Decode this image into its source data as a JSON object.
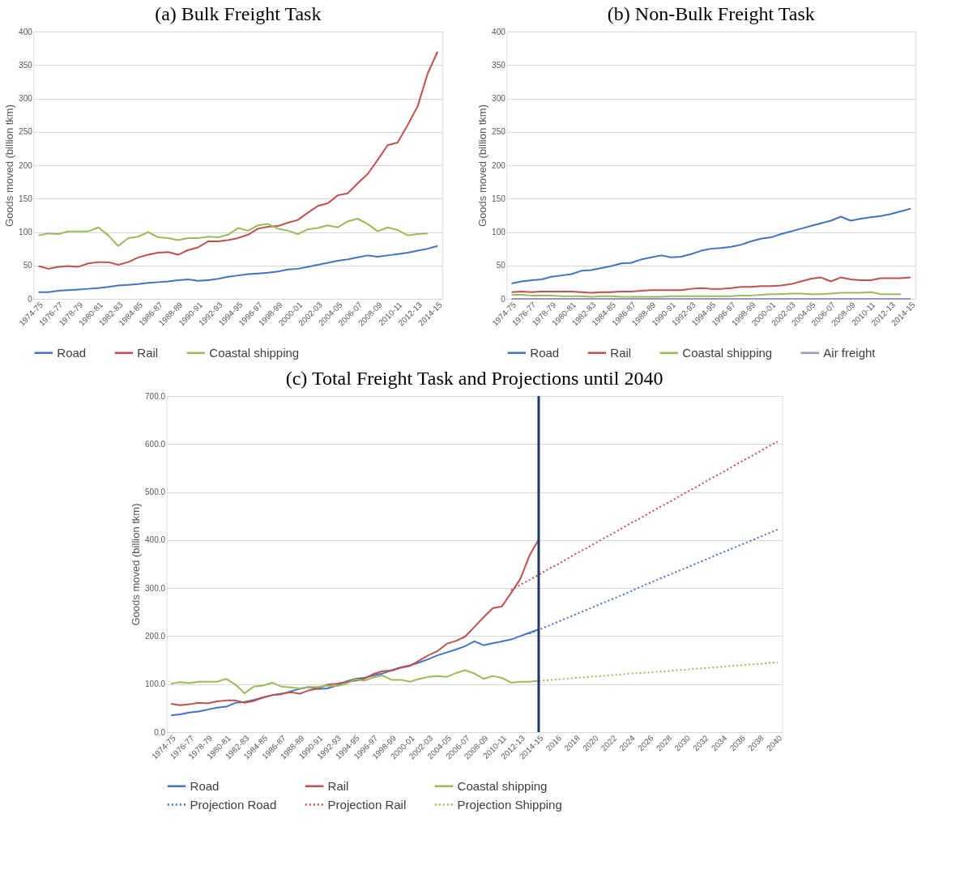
{
  "chart_data": [
    {
      "type": "line",
      "title": "(a) Bulk Freight Task",
      "ylabel": "Goods moved (billion tkm)",
      "categories": [
        "1974-75",
        null,
        "1976-77",
        null,
        "1978-79",
        null,
        "1980-81",
        null,
        "1982-83",
        null,
        "1984-85",
        null,
        "1986-87",
        null,
        "1988-89",
        null,
        "1990-91",
        null,
        "1992-93",
        null,
        "1994-95",
        null,
        "1996-97",
        null,
        "1998-99",
        null,
        "2000-01",
        null,
        "2002-03",
        null,
        "2004-05",
        null,
        "2006-07",
        null,
        "2008-09",
        null,
        "2010-11",
        null,
        "2012-13",
        null,
        "2014-15"
      ],
      "series": [
        {
          "name": "Road",
          "color": "#4472c4",
          "line_style": "solid",
          "values": [
            10,
            10,
            12,
            13,
            14,
            15,
            16,
            18,
            20,
            21,
            22,
            24,
            25,
            26,
            28,
            29,
            27,
            28,
            30,
            33,
            35,
            37,
            38,
            39,
            41,
            44,
            45,
            48,
            51,
            54,
            57,
            59,
            62,
            65,
            63,
            65,
            67,
            69,
            72,
            75,
            79
          ]
        },
        {
          "name": "Rail",
          "color": "#c0504d",
          "line_style": "solid",
          "values": [
            49,
            45,
            48,
            49,
            48,
            53,
            55,
            55,
            51,
            55,
            62,
            66,
            69,
            70,
            66,
            73,
            77,
            86,
            86,
            88,
            91,
            96,
            105,
            108,
            109,
            114,
            118,
            129,
            139,
            143,
            155,
            158,
            173,
            187,
            208,
            230,
            234,
            260,
            288,
            337,
            370
          ]
        },
        {
          "name": "Coastal shipping",
          "color": "#9bbb59",
          "line_style": "solid",
          "values": [
            95,
            98,
            97,
            101,
            101,
            101,
            107,
            95,
            79,
            91,
            93,
            100,
            92,
            91,
            88,
            91,
            91,
            93,
            92,
            96,
            106,
            102,
            110,
            112,
            105,
            102,
            97,
            104,
            106,
            110,
            107,
            116,
            120,
            112,
            101,
            107,
            103,
            95,
            97,
            98,
            null
          ]
        }
      ],
      "ylim": [
        0,
        400
      ],
      "yticks": [
        0,
        50,
        100,
        150,
        200,
        250,
        300,
        350,
        400
      ],
      "grid": "y",
      "legend": "bottom"
    },
    {
      "type": "line",
      "title": "(b) Non-Bulk Freight Task",
      "ylabel": "Goods moved (billion tkm)",
      "categories": [
        "1974-75",
        null,
        "1976-77",
        null,
        "1978-79",
        null,
        "1980-81",
        null,
        "1982-83",
        null,
        "1984-85",
        null,
        "1986-87",
        null,
        "1988-89",
        null,
        "1990-91",
        null,
        "1992-93",
        null,
        "1994-95",
        null,
        "1996-97",
        null,
        "1998-99",
        null,
        "2000-01",
        null,
        "2002-03",
        null,
        "2004-05",
        null,
        "2006-07",
        null,
        "2008-09",
        null,
        "2010-11",
        null,
        "2012-13",
        null,
        "2014-15"
      ],
      "series": [
        {
          "name": "Road",
          "color": "#4472c4",
          "line_style": "solid",
          "values": [
            23,
            26,
            28,
            29,
            33,
            35,
            37,
            42,
            43,
            46,
            49,
            53,
            54,
            59,
            62,
            65,
            62,
            63,
            67,
            72,
            75,
            76,
            78,
            81,
            86,
            90,
            92,
            97,
            101,
            105,
            109,
            113,
            117,
            123,
            117,
            120,
            122,
            124,
            127,
            131,
            135
          ]
        },
        {
          "name": "Rail",
          "color": "#c0504d",
          "line_style": "solid",
          "values": [
            10,
            11,
            10,
            11,
            11,
            11,
            11,
            10,
            9,
            10,
            10,
            11,
            11,
            12,
            13,
            13,
            13,
            13,
            15,
            16,
            15,
            15,
            16,
            18,
            18,
            19,
            19,
            20,
            22,
            26,
            30,
            32,
            26,
            32,
            29,
            28,
            28,
            31,
            31,
            31,
            32
          ]
        },
        {
          "name": "Coastal shipping",
          "color": "#9bbb59",
          "line_style": "solid",
          "values": [
            6,
            6,
            5,
            5,
            5,
            4,
            4,
            4,
            3,
            4,
            4,
            3,
            3,
            3,
            3,
            3,
            4,
            4,
            4,
            4,
            4,
            4,
            4,
            5,
            5,
            6,
            7,
            7,
            8,
            8,
            7,
            7,
            8,
            9,
            9,
            9,
            10,
            7,
            7,
            7,
            null
          ]
        },
        {
          "name": "Air freight",
          "color": "#a290c8",
          "line_style": "solid",
          "values": [
            0,
            0,
            0,
            0,
            0,
            0,
            0,
            0,
            0,
            0,
            0,
            0,
            0,
            0,
            0,
            0,
            0,
            0,
            0,
            0,
            0,
            0,
            0,
            0,
            0,
            0,
            0,
            0,
            0,
            0,
            0,
            0,
            0,
            0,
            0,
            0,
            0,
            0,
            0,
            0,
            0
          ]
        }
      ],
      "ylim": [
        0,
        400
      ],
      "yticks": [
        0,
        50,
        100,
        150,
        200,
        250,
        300,
        350,
        400
      ],
      "grid": "y",
      "legend": "bottom"
    },
    {
      "type": "line",
      "title": "(c) Total Freight Task and Projections until 2040",
      "ylabel": "Goods moved (billion tkm)",
      "categories": [
        "1974-75",
        null,
        "1976-77",
        null,
        "1978-79",
        null,
        "1980-81",
        null,
        "1982-83",
        null,
        "1984-85",
        null,
        "1986-87",
        null,
        "1988-89",
        null,
        "1990-91",
        null,
        "1992-93",
        null,
        "1994-95",
        null,
        "1996-97",
        null,
        "1998-99",
        null,
        "2000-01",
        null,
        "2002-03",
        null,
        "2004-05",
        null,
        "2006-07",
        null,
        "2008-09",
        null,
        "2010-11",
        null,
        "2012-13",
        null,
        "2014-15",
        null,
        "2016",
        null,
        "2018",
        null,
        "2020",
        null,
        "2022",
        null,
        "2024",
        null,
        "2026",
        null,
        "2028",
        null,
        "2030",
        null,
        "2032",
        null,
        "2034",
        null,
        "2036",
        null,
        "2038",
        null,
        "2040"
      ],
      "series": [
        {
          "name": "Road",
          "color": "#4472c4",
          "line_style": "solid",
          "values": [
            35,
            37,
            41,
            43,
            47,
            51,
            53,
            61,
            63,
            67,
            72,
            77,
            79,
            85,
            90,
            94,
            90,
            91,
            97,
            105,
            111,
            113,
            118,
            122,
            129,
            135,
            139,
            145,
            152,
            160,
            166,
            172,
            179,
            189,
            181,
            185,
            189,
            193,
            200,
            207,
            214,
            null,
            null,
            null,
            null,
            null,
            null,
            null,
            null,
            null,
            null,
            null,
            null,
            null,
            null,
            null,
            null,
            null,
            null,
            null,
            null,
            null,
            null,
            null,
            null,
            null,
            null
          ]
        },
        {
          "name": "Rail",
          "color": "#c0504d",
          "line_style": "solid",
          "values": [
            59,
            56,
            58,
            61,
            60,
            64,
            66,
            66,
            61,
            65,
            72,
            77,
            80,
            83,
            80,
            87,
            91,
            99,
            101,
            104,
            107,
            111,
            121,
            127,
            128,
            134,
            138,
            149,
            160,
            169,
            184,
            190,
            199,
            219,
            239,
            258,
            262,
            290,
            319,
            368,
            401,
            null,
            null,
            null,
            null,
            null,
            null,
            null,
            null,
            null,
            null,
            null,
            null,
            null,
            null,
            null,
            null,
            null,
            null,
            null,
            null,
            null,
            null,
            null,
            null,
            null,
            null
          ]
        },
        {
          "name": "Coastal shipping",
          "color": "#9bbb59",
          "line_style": "solid",
          "values": [
            101,
            104,
            102,
            105,
            105,
            105,
            111,
            99,
            81,
            95,
            97,
            103,
            95,
            93,
            91,
            94,
            94,
            97,
            96,
            100,
            110,
            107,
            114,
            118,
            109,
            109,
            105,
            111,
            115,
            117,
            115,
            123,
            129,
            122,
            111,
            117,
            113,
            103,
            105,
            105,
            107,
            null,
            null,
            null,
            null,
            null,
            null,
            null,
            null,
            null,
            null,
            null,
            null,
            null,
            null,
            null,
            null,
            null,
            null,
            null,
            null,
            null,
            null,
            null,
            null,
            null,
            null
          ]
        },
        {
          "name": "Projection Road",
          "color": "#4472c4",
          "line_style": "dotted",
          "values": [
            null,
            null,
            null,
            null,
            null,
            null,
            null,
            null,
            null,
            null,
            null,
            null,
            null,
            null,
            null,
            null,
            null,
            null,
            null,
            null,
            null,
            null,
            null,
            null,
            null,
            null,
            null,
            null,
            null,
            null,
            null,
            null,
            null,
            null,
            null,
            null,
            null,
            null,
            null,
            205,
            213,
            221,
            229,
            237,
            245,
            253,
            261,
            269,
            277,
            285,
            293,
            302,
            310,
            318,
            326,
            334,
            342,
            350,
            358,
            366,
            374,
            382,
            390,
            398,
            406,
            414,
            422
          ]
        },
        {
          "name": "Projection Rail",
          "color": "#c0504d",
          "line_style": "dotted",
          "values": [
            null,
            null,
            null,
            null,
            null,
            null,
            null,
            null,
            null,
            null,
            null,
            null,
            null,
            null,
            null,
            null,
            null,
            null,
            null,
            null,
            null,
            null,
            null,
            null,
            null,
            null,
            null,
            null,
            null,
            null,
            null,
            null,
            null,
            null,
            null,
            null,
            null,
            296,
            307,
            317,
            328,
            339,
            349,
            360,
            371,
            381,
            392,
            403,
            413,
            424,
            435,
            445,
            456,
            467,
            477,
            488,
            499,
            509,
            520,
            531,
            541,
            552,
            563,
            573,
            584,
            595,
            605
          ]
        },
        {
          "name": "Projection Shipping",
          "color": "#9bbb59",
          "line_style": "dotted",
          "values": [
            null,
            null,
            null,
            null,
            null,
            null,
            null,
            null,
            null,
            null,
            null,
            null,
            null,
            null,
            null,
            null,
            null,
            null,
            null,
            null,
            null,
            null,
            null,
            null,
            null,
            null,
            null,
            null,
            null,
            null,
            null,
            null,
            null,
            null,
            null,
            null,
            null,
            null,
            null,
            null,
            107,
            108,
            110,
            111,
            113,
            114,
            116,
            117,
            119,
            120,
            122,
            123,
            124,
            126,
            127,
            129,
            130,
            132,
            133,
            135,
            136,
            138,
            139,
            141,
            142,
            144,
            145
          ]
        }
      ],
      "ylim": [
        0,
        700
      ],
      "yticks": [
        {
          "value": 0,
          "label": "0.0"
        },
        {
          "value": 100,
          "label": "100.0"
        },
        {
          "value": 200,
          "label": "200.0"
        },
        {
          "value": 300,
          "label": "300.0"
        },
        {
          "value": 400,
          "label": "400.0"
        },
        {
          "value": 500,
          "label": "500.0"
        },
        {
          "value": 600,
          "label": "600.0"
        },
        {
          "value": 700,
          "label": "700.0"
        }
      ],
      "ref_lines": [
        {
          "axis": "x",
          "value": "2014-15",
          "color": "#1f3864"
        }
      ],
      "grid": "y",
      "legend": "bottom"
    }
  ]
}
